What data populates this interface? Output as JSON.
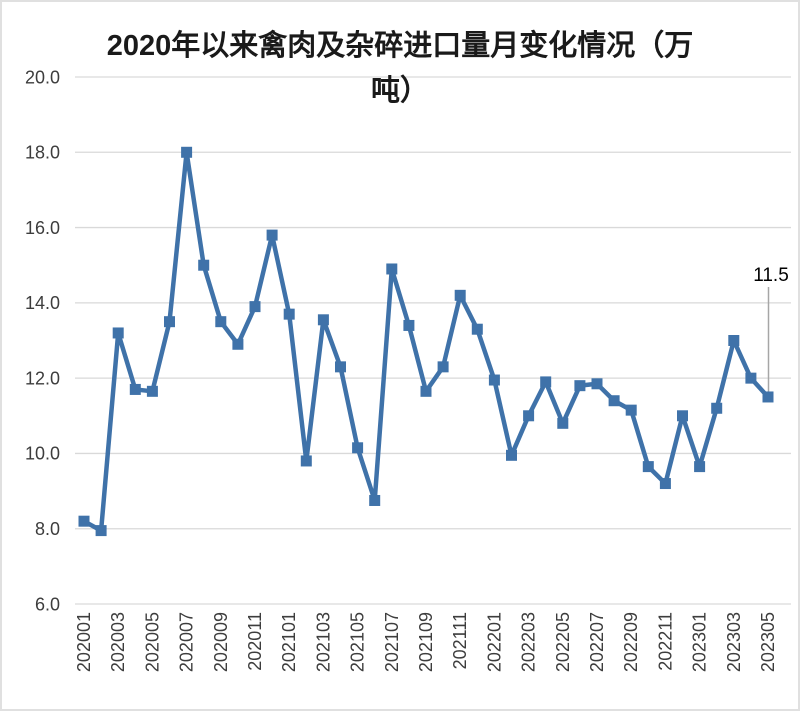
{
  "page": {
    "background": "#ffffff",
    "border_color": "#e0e0e0"
  },
  "title": {
    "line1": "2020年以来禽肉及杂碎进口量月变化情况（万",
    "line2": "吨）"
  },
  "chart_data": {
    "type": "line",
    "title": "2020年以来禽肉及杂碎进口量月变化情况（万吨）",
    "categories": [
      "202001",
      "202002",
      "202003",
      "202004",
      "202005",
      "202006",
      "202007",
      "202008",
      "202009",
      "202010",
      "202011",
      "202012",
      "202101",
      "202102",
      "202103",
      "202104",
      "202105",
      "202106",
      "202107",
      "202108",
      "202109",
      "202110",
      "202111",
      "202112",
      "202201",
      "202202",
      "202203",
      "202204",
      "202205",
      "202206",
      "202207",
      "202208",
      "202209",
      "202210",
      "202211",
      "202212",
      "202301",
      "202302",
      "202303",
      "202304",
      "202305"
    ],
    "values": [
      8.2,
      7.95,
      13.2,
      11.7,
      11.65,
      13.5,
      18.0,
      15.0,
      13.5,
      12.9,
      13.9,
      15.8,
      13.7,
      9.8,
      13.55,
      12.3,
      10.15,
      8.75,
      14.9,
      13.4,
      11.65,
      12.3,
      14.2,
      13.3,
      11.95,
      9.95,
      11.0,
      11.9,
      10.8,
      11.8,
      11.85,
      11.4,
      11.15,
      9.65,
      9.2,
      11.0,
      9.65,
      11.2,
      13.0,
      12.0,
      11.5
    ],
    "x_tick_labels": [
      "202001",
      "202003",
      "202005",
      "202007",
      "202009",
      "202011",
      "202101",
      "202103",
      "202105",
      "202107",
      "202109",
      "202111",
      "202201",
      "202203",
      "202205",
      "202207",
      "202209",
      "202211",
      "202301",
      "202303",
      "202305"
    ],
    "y_tick_labels": [
      "20.0",
      "18.0",
      "16.0",
      "14.0",
      "12.0",
      "10.0",
      "8.0",
      "6.0"
    ],
    "ylim": [
      6.0,
      20.0
    ],
    "y_tick_step": 2.0,
    "grid": "horizontal",
    "legend": "none",
    "marker": "square",
    "annotation": {
      "text": "11.5",
      "point_index": 40
    },
    "colors": {
      "series": "#3F72A9",
      "gridline": "#D9D9D9",
      "tick_label": "#3D3D3D",
      "title_text": "#1A1A1A",
      "annotation_text": "#000000",
      "leader_line": "#A6A6A6"
    }
  }
}
